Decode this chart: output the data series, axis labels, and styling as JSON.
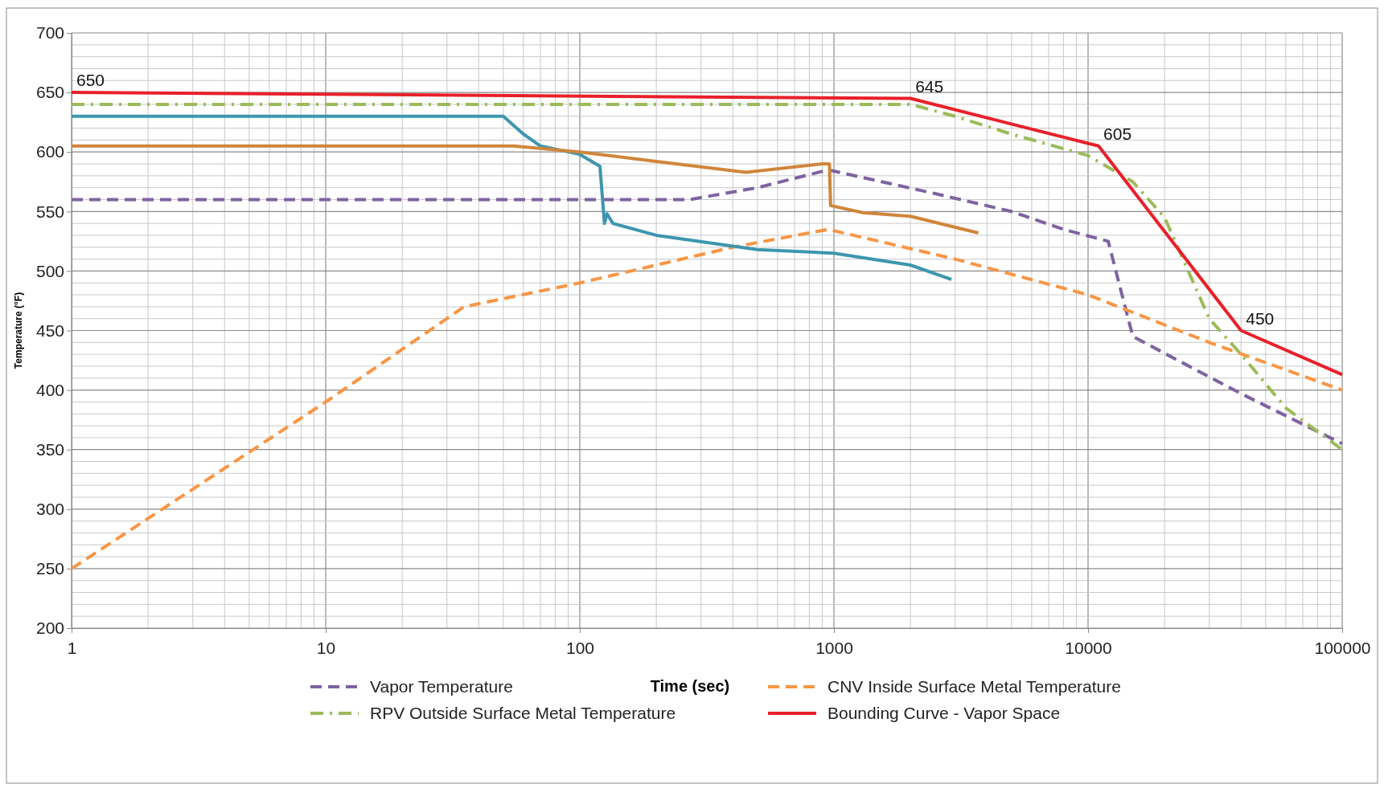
{
  "chart_data": {
    "type": "line",
    "xlabel": "Time (sec)",
    "ylabel": "Temperature (°F)",
    "log": "x",
    "xlim": [
      1,
      100000
    ],
    "xticks": [
      1,
      10,
      100,
      1000,
      10000,
      100000
    ],
    "ylim": [
      200,
      700
    ],
    "yticks": [
      200,
      250,
      300,
      350,
      400,
      450,
      500,
      550,
      600,
      650,
      700
    ],
    "grid": true,
    "legend": "bottom",
    "marker": "none",
    "series": [
      {
        "name": "Vapor Temperature",
        "color": "#7e63a0",
        "line_style": "dashed",
        "x": [
          1,
          270,
          500,
          950,
          2500,
          5000,
          8000,
          12000,
          15000,
          40000,
          100000
        ],
        "values": [
          560,
          560,
          570,
          585,
          565,
          550,
          535,
          525,
          445,
          397,
          355
        ]
      },
      {
        "name": "CNV Inside Surface Metal Temperature",
        "color": "#f79646",
        "line_style": "dashed",
        "x": [
          1,
          10,
          35,
          100,
          400,
          950,
          3000,
          10000,
          30000,
          100000
        ],
        "values": [
          250,
          390,
          470,
          490,
          520,
          535,
          510,
          480,
          440,
          400
        ]
      },
      {
        "name": "RPV Outside Surface Metal Temperature",
        "color": "#9bbb59",
        "line_style": "dashdot",
        "x": [
          1,
          2000,
          3000,
          5000,
          10000,
          15000,
          20000,
          30000,
          40000,
          60000,
          100000
        ],
        "values": [
          640,
          640,
          630,
          615,
          597,
          575,
          545,
          460,
          430,
          385,
          350
        ]
      },
      {
        "name": "Bounding Curve - Vapor Space",
        "color": "#e8202a",
        "line_style": "solid",
        "x": [
          1,
          2000,
          11000,
          40000,
          100000
        ],
        "values": [
          650,
          645,
          605,
          450,
          413
        ]
      },
      {
        "color": "#3d96ae",
        "line_style": "solid",
        "x": [
          1,
          50,
          60,
          70,
          100,
          120,
          125,
          128,
          135,
          200,
          500,
          1000,
          2000,
          2900
        ],
        "values": [
          630,
          630,
          615,
          605,
          598,
          588,
          540,
          548,
          540,
          530,
          518,
          515,
          505,
          493
        ]
      },
      {
        "color": "#d0863b",
        "line_style": "solid",
        "x": [
          1,
          50,
          55,
          100,
          200,
          450,
          900,
          960,
          970,
          1300,
          2000,
          3700
        ],
        "values": [
          605,
          605,
          605,
          600,
          592,
          583,
          590,
          590,
          555,
          549,
          546,
          532
        ]
      }
    ],
    "annotations": [
      {
        "text": "650",
        "x": 1,
        "y": 650
      },
      {
        "text": "645",
        "x": 2000,
        "y": 645
      },
      {
        "text": "605",
        "x": 11000,
        "y": 605
      },
      {
        "text": "450",
        "x": 40000,
        "y": 450
      }
    ]
  }
}
